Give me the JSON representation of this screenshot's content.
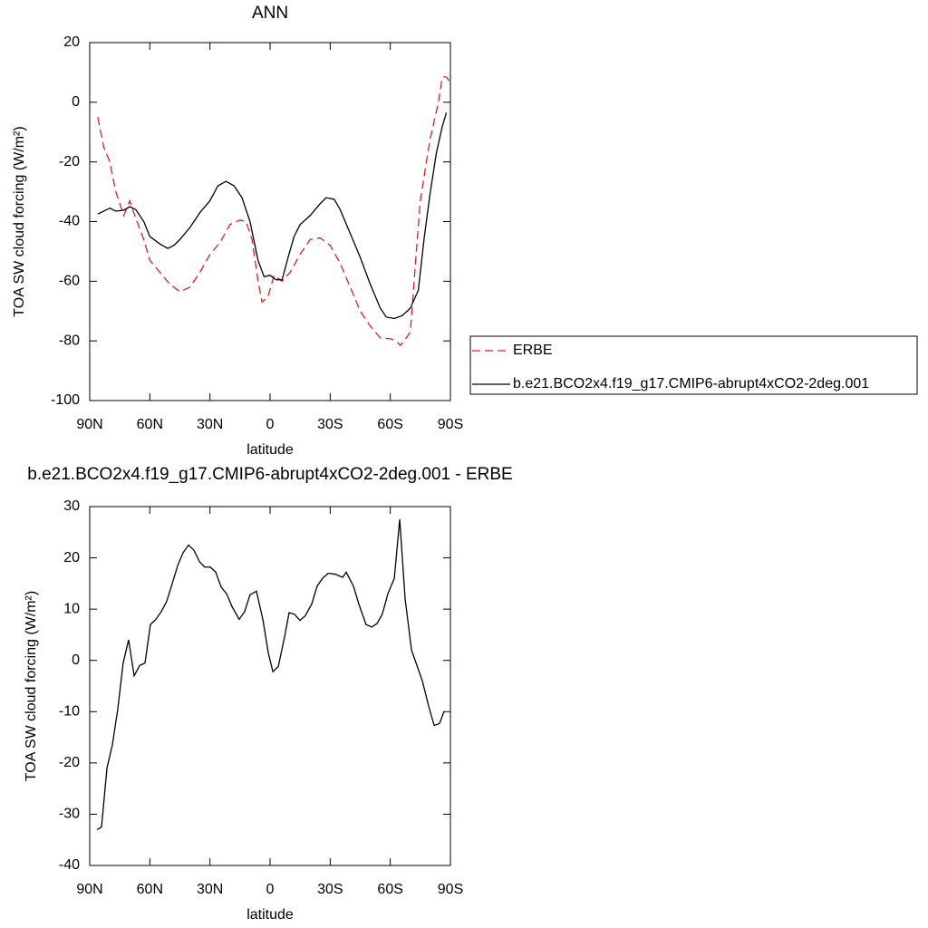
{
  "chart_data": [
    {
      "type": "line",
      "title": "ANN",
      "x_label": "latitude",
      "y_label": "TOA SW cloud forcing (W/m²)",
      "xlim": [
        90,
        -90
      ],
      "xticks": [
        {
          "value": 90,
          "label": "90N"
        },
        {
          "value": 60,
          "label": "60N"
        },
        {
          "value": 30,
          "label": "30N"
        },
        0,
        {
          "value": -30,
          "label": "30S"
        },
        {
          "value": -60,
          "label": "60S"
        },
        {
          "value": -90,
          "label": "90S"
        }
      ],
      "ylim": [
        -100,
        20
      ],
      "yticks": [
        -100,
        -80,
        -60,
        -40,
        -20,
        0,
        20
      ],
      "legend": "outside-right",
      "series": [
        {
          "name": "ERBE",
          "color": "#e02020",
          "dashed": true,
          "x": [
            86,
            83,
            80,
            77,
            73,
            70,
            67,
            63,
            60,
            55,
            50,
            45,
            40,
            35,
            30,
            25,
            20,
            15,
            12,
            9,
            6,
            4,
            1,
            -2,
            -6,
            -10,
            -15,
            -20,
            -25,
            -30,
            -35,
            -40,
            -45,
            -50,
            -55,
            -60,
            -63,
            -65,
            -68,
            -70,
            -73,
            -75,
            -78,
            -80,
            -84,
            -86,
            -88,
            -90
          ],
          "values": [
            -5,
            -15,
            -20,
            -30,
            -38,
            -33,
            -39,
            -46,
            -53,
            -57,
            -61,
            -63.5,
            -62,
            -57,
            -51,
            -47,
            -41,
            -39.5,
            -40,
            -46,
            -60,
            -67,
            -65,
            -58,
            -60,
            -57,
            -51,
            -46,
            -45.5,
            -48,
            -54,
            -62,
            -70,
            -75,
            -79,
            -79.3,
            -80,
            -81.5,
            -79,
            -77,
            -50,
            -33,
            -20,
            -12,
            0,
            8.5,
            8.5,
            6.5
          ]
        },
        {
          "name": "b.e21.BCO2x4.f19_g17.CMIP6-abrupt4xCO2-2deg.001",
          "color": "#000000",
          "dashed": false,
          "x": [
            86,
            83,
            80,
            77,
            73,
            70,
            67,
            63,
            60,
            55,
            51,
            48,
            45,
            40,
            35,
            30,
            26,
            22,
            18,
            14,
            10,
            6,
            3,
            0,
            -3,
            -6,
            -9,
            -12,
            -15,
            -20,
            -25,
            -28,
            -32,
            -35,
            -40,
            -45,
            -50,
            -55,
            -58,
            -62,
            -66,
            -70,
            -74,
            -77,
            -80,
            -83,
            -86,
            -88
          ],
          "values": [
            -37.5,
            -36.5,
            -35.5,
            -36.5,
            -36.2,
            -35,
            -36,
            -40,
            -45,
            -47.5,
            -49,
            -48,
            -46,
            -42,
            -37,
            -33,
            -28,
            -26.5,
            -28,
            -32,
            -40,
            -53,
            -58.5,
            -58,
            -59.5,
            -59.5,
            -52,
            -45,
            -41,
            -38,
            -34,
            -32,
            -32.5,
            -36,
            -44,
            -52,
            -61,
            -69,
            -72,
            -72.5,
            -71.5,
            -69,
            -63,
            -45,
            -30,
            -17,
            -8,
            -3.5
          ]
        }
      ]
    },
    {
      "type": "line",
      "title": "b.e21.BCO2x4.f19_g17.CMIP6-abrupt4xCO2-2deg.001 - ERBE",
      "x_label": "latitude",
      "y_label": "TOA SW cloud forcing (W/m²)",
      "xlim": [
        90,
        -90
      ],
      "xticks": [
        {
          "value": 90,
          "label": "90N"
        },
        {
          "value": 60,
          "label": "60N"
        },
        {
          "value": 30,
          "label": "30N"
        },
        0,
        {
          "value": -30,
          "label": "30S"
        },
        {
          "value": -60,
          "label": "60S"
        },
        {
          "value": -90,
          "label": "90S"
        }
      ],
      "ylim": [
        -40,
        30
      ],
      "yticks": [
        -40,
        -30,
        -20,
        -10,
        0,
        10,
        20,
        30
      ],
      "series": [
        {
          "color": "#000000",
          "dashed": false,
          "x": [
            86.4,
            84.1,
            81.4,
            78.7,
            76,
            73.3,
            70.6,
            67.8,
            65.1,
            62.4,
            59.7,
            57,
            54.3,
            51.6,
            48.8,
            46.1,
            43.4,
            40.7,
            38,
            35.3,
            32.6,
            29.8,
            27.1,
            24.4,
            21.7,
            19,
            15.4,
            12.7,
            10,
            6.8,
            3.6,
            0.9,
            -1.4,
            -4.1,
            -7.2,
            -9.5,
            -12.2,
            -14.9,
            -17.6,
            -20.8,
            -23.5,
            -26.2,
            -29,
            -32.6,
            -36.2,
            -38,
            -41.6,
            -44.3,
            -47.9,
            -50.7,
            -53.4,
            -56,
            -58.8,
            -62,
            -64.7,
            -67.4,
            -70.6,
            -73.3,
            -76,
            -79.2,
            -81.9,
            -84.6,
            -86.8
          ],
          "values": [
            -33,
            -32.5,
            -21,
            -16.5,
            -9.5,
            -0.5,
            4,
            -3,
            -1,
            -0.5,
            7,
            8,
            9.5,
            11.5,
            15,
            18.5,
            21,
            22.5,
            21.5,
            19.3,
            18.2,
            18.2,
            17.2,
            14.3,
            13,
            10.5,
            8,
            9.5,
            12.8,
            13.5,
            8,
            1.5,
            -2.2,
            -1.2,
            4.5,
            9.3,
            9,
            7.8,
            8.7,
            11,
            14.5,
            16,
            17,
            16.8,
            16.2,
            17.2,
            14.5,
            11,
            7,
            6.5,
            7.2,
            9,
            13,
            16,
            27.5,
            12,
            2,
            -1,
            -4,
            -9,
            -12.7,
            -12.3,
            -10
          ]
        }
      ]
    }
  ]
}
